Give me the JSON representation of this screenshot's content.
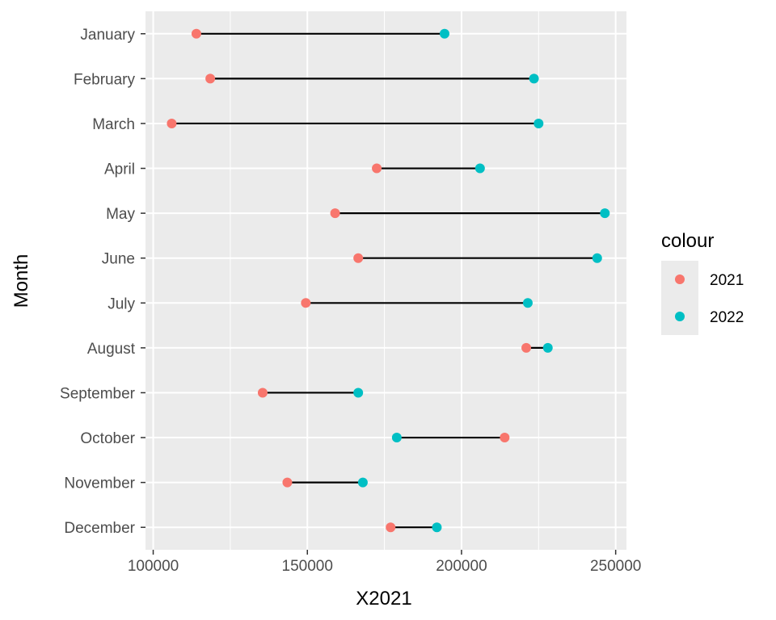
{
  "chart_data": {
    "type": "dumbbell",
    "xlabel": "X2021",
    "ylabel": "Month",
    "xlim": [
      97500,
      253500
    ],
    "x_ticks": [
      100000,
      150000,
      200000,
      250000
    ],
    "x_tick_labels": [
      "100000",
      "150000",
      "200000",
      "250000"
    ],
    "categories": [
      "January",
      "February",
      "March",
      "April",
      "May",
      "June",
      "July",
      "August",
      "September",
      "October",
      "November",
      "December"
    ],
    "series": [
      {
        "name": "2021",
        "color": "#F8766D",
        "values": [
          114000,
          118500,
          106000,
          172500,
          159000,
          166500,
          149500,
          221000,
          135500,
          214000,
          143500,
          177000
        ]
      },
      {
        "name": "2022",
        "color": "#00BFC4",
        "values": [
          194500,
          223500,
          225000,
          206000,
          246500,
          244000,
          221500,
          228000,
          166500,
          179000,
          168000,
          192000
        ]
      }
    ],
    "legend": {
      "title": "colour",
      "position": "right"
    },
    "grid": true,
    "segment_color": "#000000",
    "panel_background": "#EBEBEB"
  }
}
